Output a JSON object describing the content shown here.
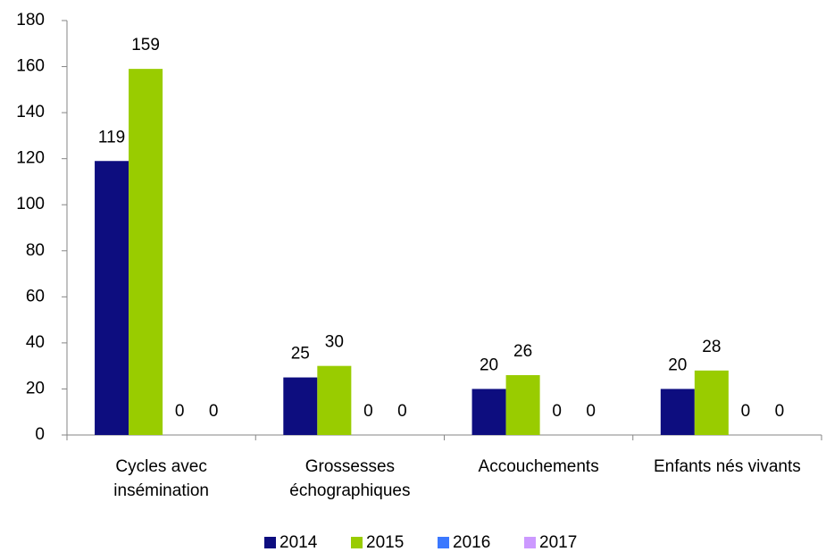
{
  "chart_data": {
    "type": "bar",
    "categories": [
      "Cycles avec\ninsémination",
      "Grossesses\néchographiques",
      "Accouchements",
      "Enfants nés vivants"
    ],
    "series": [
      {
        "name": "2014",
        "color": "#0d0d7f",
        "values": [
          119,
          25,
          20,
          20
        ]
      },
      {
        "name": "2015",
        "color": "#99cc00",
        "values": [
          159,
          30,
          26,
          28
        ]
      },
      {
        "name": "2016",
        "color": "#3b78ff",
        "values": [
          0,
          0,
          0,
          0
        ]
      },
      {
        "name": "2017",
        "color": "#cc99ff",
        "values": [
          0,
          0,
          0,
          0
        ]
      }
    ],
    "ylim": [
      0,
      180
    ],
    "yticks": [
      0,
      20,
      40,
      60,
      80,
      100,
      120,
      140,
      160,
      180
    ],
    "grid": false,
    "legend": "bottom"
  }
}
